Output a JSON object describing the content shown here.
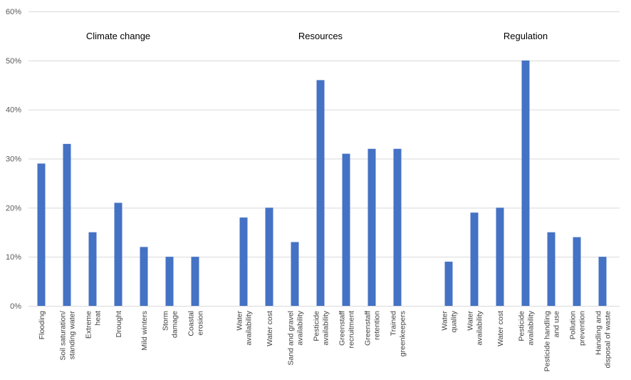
{
  "chart_data": {
    "type": "bar",
    "ylim": [
      0,
      60
    ],
    "yticks": [
      0,
      10,
      20,
      30,
      40,
      50,
      60
    ],
    "ytick_suffix": "%",
    "grid": true,
    "bar_color": "#4472C4",
    "grid_color": "#D9D9D9",
    "groups": [
      {
        "name": "Climate change",
        "categories": [
          [
            "Flooding"
          ],
          [
            "Soil saturation/",
            "standing water"
          ],
          [
            "Extreme",
            "heat"
          ],
          [
            "Drought"
          ],
          [
            "Mild winters"
          ],
          [
            "Storm",
            "damage"
          ],
          [
            "Coastal",
            "erosion"
          ]
        ],
        "values": [
          29,
          33,
          15,
          21,
          12,
          10,
          10
        ]
      },
      {
        "name": "Resources",
        "categories": [
          [
            "Water",
            "availability"
          ],
          [
            "Water cost"
          ],
          [
            "Sand and gravel",
            "availability"
          ],
          [
            "Pesticide",
            "availability"
          ],
          [
            "Greenstaff",
            "recruitment"
          ],
          [
            "Greenstaff",
            "retention"
          ],
          [
            "Trained",
            "greenkeepers"
          ]
        ],
        "values": [
          18,
          20,
          13,
          46,
          31,
          32,
          32
        ]
      },
      {
        "name": "Regulation",
        "categories": [
          [
            "Water",
            "quality"
          ],
          [
            "Water",
            "availability"
          ],
          [
            "Water cost"
          ],
          [
            "Pesticide",
            "availability"
          ],
          [
            "Pesticide handling",
            "and use"
          ],
          [
            "Pollution",
            "prevention"
          ],
          [
            "Handling and",
            "disposal of waste"
          ]
        ],
        "values": [
          9,
          19,
          20,
          50,
          15,
          14,
          10
        ]
      }
    ]
  }
}
